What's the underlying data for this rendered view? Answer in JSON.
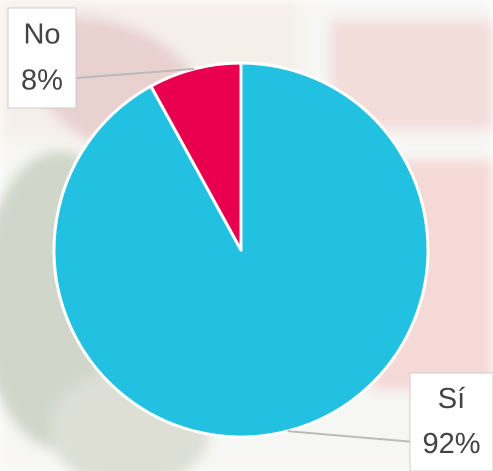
{
  "chart_data": {
    "type": "pie",
    "categories": [
      "Sí",
      "No"
    ],
    "values": [
      92,
      8
    ],
    "value_labels": [
      "92%",
      "8%"
    ],
    "colors": [
      "#22c1e1",
      "#e8004f"
    ]
  }
}
